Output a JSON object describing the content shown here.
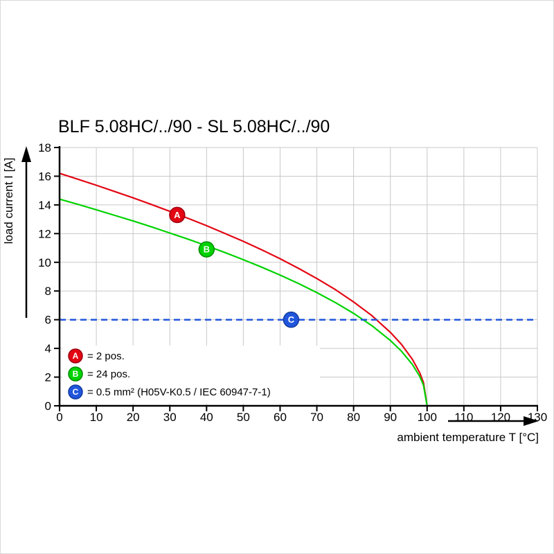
{
  "page": {
    "title": "BLF 5.08HC/../90 - SL 5.08HC/../90"
  },
  "chart_data": {
    "type": "line",
    "title": "BLF 5.08HC/../90 - SL 5.08HC/../90",
    "xlabel": "ambient temperature T [°C]",
    "ylabel": "load current I [A]",
    "xlim": [
      0,
      130
    ],
    "ylim": [
      0,
      18
    ],
    "xticks": [
      0,
      10,
      20,
      30,
      40,
      50,
      60,
      70,
      80,
      90,
      100,
      110,
      120,
      130
    ],
    "yticks": [
      0,
      2,
      4,
      6,
      8,
      10,
      12,
      14,
      16,
      18
    ],
    "grid": true,
    "grid_color": "#c8c8c8",
    "axis_color": "#000000",
    "series": [
      {
        "name": "A",
        "color": "#e30613",
        "stroke_dark": "#9b0410",
        "style": "solid",
        "points": [
          [
            0,
            16.2
          ],
          [
            5,
            15.79
          ],
          [
            10,
            15.37
          ],
          [
            15,
            14.93
          ],
          [
            20,
            14.49
          ],
          [
            25,
            14.03
          ],
          [
            30,
            13.55
          ],
          [
            35,
            13.06
          ],
          [
            40,
            12.55
          ],
          [
            45,
            12.01
          ],
          [
            50,
            11.46
          ],
          [
            55,
            10.87
          ],
          [
            60,
            10.25
          ],
          [
            65,
            9.58
          ],
          [
            70,
            8.87
          ],
          [
            75,
            8.1
          ],
          [
            80,
            7.24
          ],
          [
            85,
            6.28
          ],
          [
            90,
            5.12
          ],
          [
            93,
            4.29
          ],
          [
            96,
            3.24
          ],
          [
            98,
            2.29
          ],
          [
            99,
            1.62
          ],
          [
            100,
            0
          ]
        ]
      },
      {
        "name": "B",
        "color": "#00d200",
        "stroke_dark": "#008a00",
        "style": "solid",
        "points": [
          [
            0,
            14.4
          ],
          [
            5,
            14.04
          ],
          [
            10,
            13.66
          ],
          [
            15,
            13.27
          ],
          [
            20,
            12.88
          ],
          [
            25,
            12.47
          ],
          [
            30,
            12.04
          ],
          [
            35,
            11.61
          ],
          [
            40,
            11.15
          ],
          [
            45,
            10.68
          ],
          [
            50,
            10.18
          ],
          [
            55,
            9.66
          ],
          [
            60,
            9.11
          ],
          [
            65,
            8.52
          ],
          [
            70,
            7.89
          ],
          [
            75,
            7.2
          ],
          [
            80,
            6.44
          ],
          [
            85,
            5.58
          ],
          [
            90,
            4.55
          ],
          [
            93,
            3.81
          ],
          [
            96,
            2.88
          ],
          [
            98,
            2.04
          ],
          [
            99,
            1.44
          ],
          [
            100,
            0
          ]
        ]
      },
      {
        "name": "C",
        "color": "#2156dc",
        "stroke_dark": "#123a9e",
        "style": "dashed",
        "points": [
          [
            0,
            6
          ],
          [
            130,
            6
          ]
        ]
      }
    ],
    "markers": [
      {
        "name": "A",
        "x": 32,
        "y": 13.3,
        "color": "#e30613",
        "stroke": "#9b0410"
      },
      {
        "name": "B",
        "x": 40,
        "y": 10.9,
        "color": "#00d200",
        "stroke": "#008a00"
      },
      {
        "name": "C",
        "x": 63,
        "y": 6.0,
        "color": "#2156dc",
        "stroke": "#123a9e"
      }
    ],
    "legend": [
      {
        "name": "A",
        "color": "#e30613",
        "stroke": "#9b0410",
        "text": "= 2 pos."
      },
      {
        "name": "B",
        "color": "#00d200",
        "stroke": "#008a00",
        "text": "= 24 pos."
      },
      {
        "name": "C",
        "color": "#2156dc",
        "stroke": "#123a9e",
        "text": "= 0.5 mm² (H05V-K0.5 / IEC 60947-7-1)"
      }
    ],
    "legend_position": "lower-left"
  }
}
